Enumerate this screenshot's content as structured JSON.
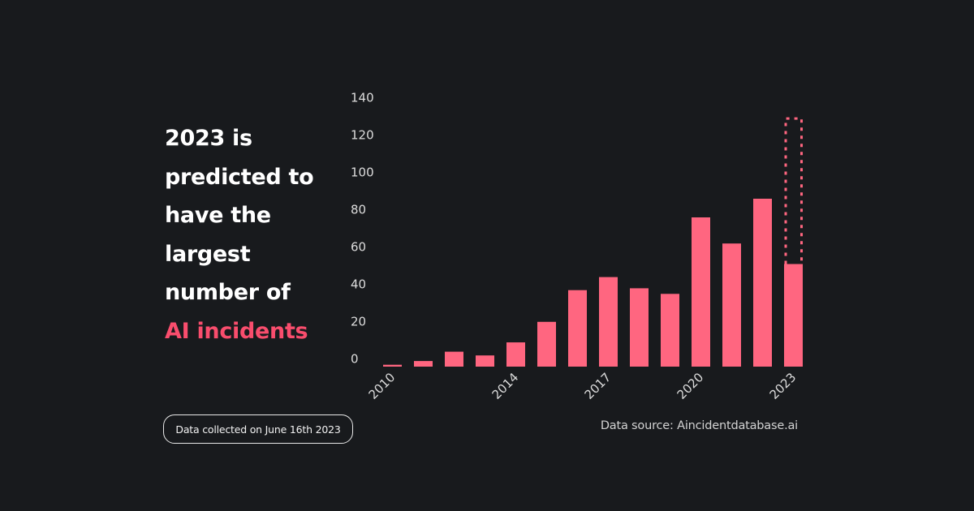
{
  "headline": {
    "lines": [
      "2023 is",
      "predicted to",
      "have the",
      "largest",
      "number of"
    ],
    "accent_line": "AI incidents",
    "accent_color": "#f94d6d"
  },
  "footer": {
    "collected_note": "Data collected on June 16th 2023",
    "source": "Data source: Aincidentdatabase.ai"
  },
  "chart_data": {
    "type": "bar",
    "title": "",
    "xlabel": "",
    "ylabel": "",
    "ylim": [
      0,
      140
    ],
    "yticks": [
      0,
      20,
      40,
      60,
      80,
      100,
      120,
      140
    ],
    "categories": [
      "2010",
      "2011",
      "2012",
      "2013",
      "2014",
      "2015",
      "2016",
      "2017",
      "2018",
      "2019",
      "2020",
      "2021",
      "2022",
      "2023"
    ],
    "xtick_labels": {
      "2010": "2010",
      "2014": "2014",
      "2017": "2017",
      "2020": "2020",
      "2023": "2023"
    },
    "series": [
      {
        "name": "AI incidents",
        "color": "#ff6680",
        "values": [
          1,
          3,
          8,
          6,
          13,
          24,
          41,
          48,
          42,
          39,
          80,
          66,
          90,
          55
        ]
      },
      {
        "name": "2023 predicted",
        "style": "dashed-outline",
        "color": "#ff6680",
        "category": "2023",
        "value": 133
      }
    ],
    "grid": false,
    "legend": "none"
  }
}
